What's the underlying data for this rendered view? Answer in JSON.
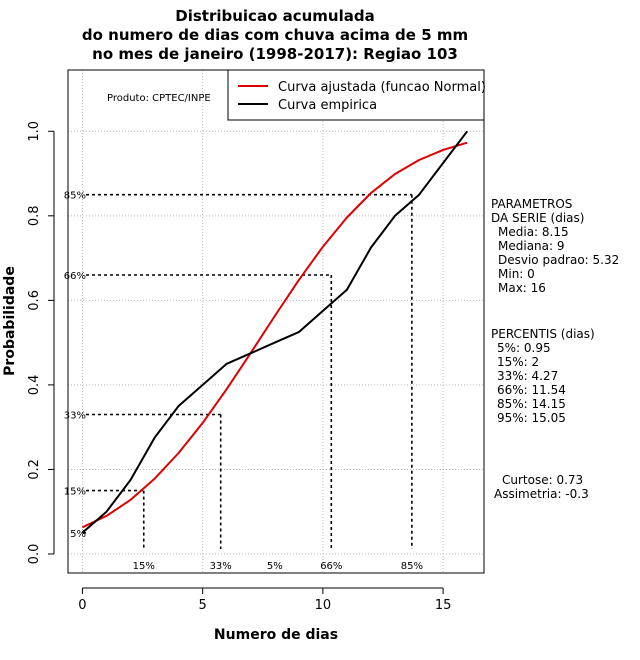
{
  "chart_data": {
    "type": "line",
    "title_lines": [
      "Distribuicao acumulada",
      "do numero de dias com chuva acima de 5 mm",
      "no mes de janeiro (1998-2017): Regiao 103"
    ],
    "xlabel": "Numero de dias",
    "ylabel": "Probabilidade",
    "xlim": [
      -0.6,
      16.7
    ],
    "ylim": [
      -0.045,
      1.145
    ],
    "x_ticks": [
      0,
      5,
      10,
      15
    ],
    "x_tick_labels": [
      "0",
      "5",
      "10",
      "15"
    ],
    "y_ticks": [
      0.0,
      0.2,
      0.4,
      0.6,
      0.8,
      1.0
    ],
    "y_tick_labels": [
      "0.0",
      "0.2",
      "0.4",
      "0.6",
      "0.8",
      "1.0"
    ],
    "grid": true,
    "series": [
      {
        "name": "Curva ajustada (funcao Normal)",
        "color": "#dd0000",
        "x": [
          0,
          1,
          2,
          3,
          4,
          5,
          6,
          7,
          8,
          9,
          10,
          11,
          12,
          13,
          14,
          15,
          16
        ],
        "values": [
          0.063,
          0.09,
          0.128,
          0.178,
          0.239,
          0.31,
          0.39,
          0.476,
          0.563,
          0.648,
          0.727,
          0.796,
          0.854,
          0.899,
          0.932,
          0.956,
          0.973
        ]
      },
      {
        "name": "Curva empirica",
        "color": "#000000",
        "x": [
          0,
          1,
          2,
          3,
          4,
          5,
          6,
          7,
          8,
          9,
          10,
          11,
          12,
          13,
          14,
          15,
          16
        ],
        "values": [
          0.05,
          0.1,
          0.175,
          0.275,
          0.35,
          0.4,
          0.45,
          0.475,
          0.5,
          0.525,
          0.575,
          0.625,
          0.725,
          0.8,
          0.85,
          0.925,
          1.0
        ]
      }
    ],
    "percentile_markers": [
      {
        "label": "5%",
        "x": 0,
        "y": 0.05,
        "show_x_label": false,
        "x_label_pos": 8.0
      },
      {
        "label": "15%",
        "x": 2.55,
        "y": 0.15,
        "show_x_label": true
      },
      {
        "label": "33%",
        "x": 5.75,
        "y": 0.33,
        "show_x_label": true
      },
      {
        "label": "66%",
        "x": 10.35,
        "y": 0.66,
        "show_x_label": true
      },
      {
        "label": "85%",
        "x": 13.7,
        "y": 0.85,
        "show_x_label": true
      }
    ],
    "bottom_marker_labels": [
      {
        "text": "15%",
        "x": 2.55
      },
      {
        "text": "33%",
        "x": 5.75
      },
      {
        "text": "5%",
        "x": 8.0
      },
      {
        "text": "66%",
        "x": 10.35
      },
      {
        "text": "85%",
        "x": 13.7
      }
    ],
    "legend": {
      "placement": "top-right",
      "entries": [
        "Curva ajustada (funcao Normal)",
        "Curva empirica"
      ]
    },
    "annotation": "Produto: CPTEC/INPE"
  },
  "side_panel": {
    "parametros_title": [
      "PARAMETROS",
      "DA SERIE (dias)"
    ],
    "parametros": [
      "Media: 8.15",
      "Mediana: 9",
      "Desvio padrao: 5.32",
      "Min: 0",
      "Max: 16"
    ],
    "percentis_title": "PERCENTIS (dias)",
    "percentis": [
      "5%: 0.95",
      "15%: 2",
      "33%: 4.27",
      "66%: 11.54",
      "85%: 14.15",
      "95%: 15.05"
    ],
    "curtose": "Curtose: 0.73",
    "assimetria": "Assimetria: -0.3"
  },
  "colors": {
    "fitted": "#dd0000",
    "empirical": "#000000",
    "grid": "#bbbbbb"
  }
}
